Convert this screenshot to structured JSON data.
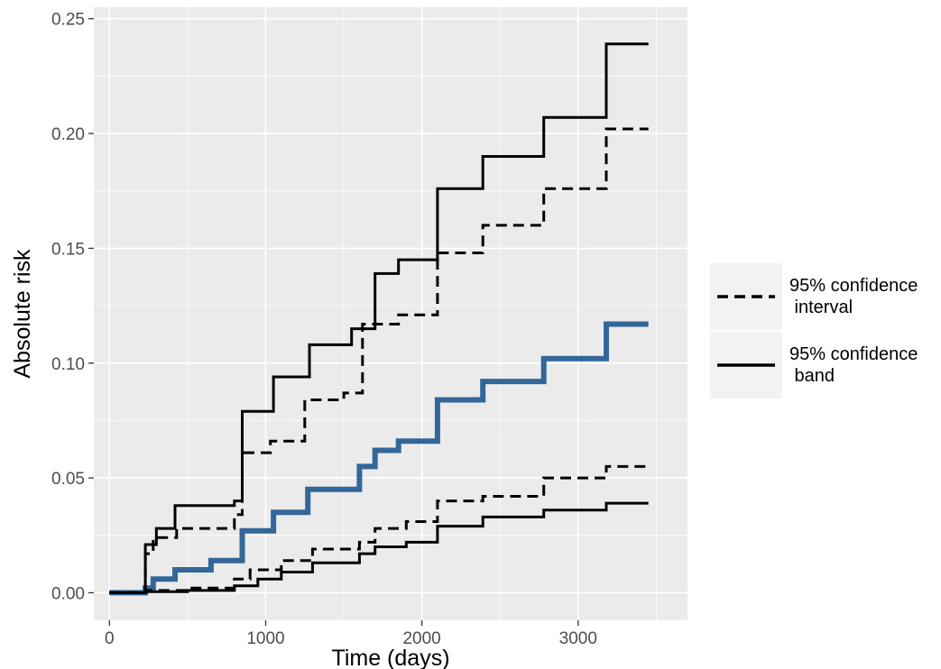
{
  "chart_data": {
    "type": "line",
    "title": "",
    "xlabel": "Time (days)",
    "ylabel": "Absolute risk",
    "xlim": [
      -100,
      3700
    ],
    "ylim": [
      -0.012,
      0.255
    ],
    "x_ticks": [
      0,
      1000,
      2000,
      3000
    ],
    "x_tick_labels": [
      "0",
      "1000",
      "2000",
      "3000"
    ],
    "y_ticks": [
      0,
      0.05,
      0.1,
      0.15,
      0.2,
      0.25
    ],
    "y_tick_labels": [
      "0.00",
      "0.05",
      "0.10",
      "0.15",
      "0.20",
      "0.25"
    ],
    "grid": true,
    "panel_background": "#ebebeb",
    "legend_position": "right",
    "legend": [
      {
        "label_lines": [
          "95% confidence",
          " interval"
        ],
        "linetype": "dashed"
      },
      {
        "label_lines": [
          "95% confidence",
          " band"
        ],
        "linetype": "solid"
      }
    ],
    "series": [
      {
        "key": "estimate",
        "linetype": "solid",
        "color": "#336699",
        "width": 6,
        "x": [
          0,
          230,
          280,
          420,
          650,
          850,
          1050,
          1270,
          1600,
          1700,
          1850,
          2100,
          2390,
          2780,
          3180,
          3450
        ],
        "y": [
          0,
          0.002,
          0.006,
          0.01,
          0.014,
          0.027,
          0.035,
          0.045,
          0.055,
          0.062,
          0.066,
          0.084,
          0.092,
          0.102,
          0.117,
          0.117
        ]
      },
      {
        "key": "ci_upper",
        "linetype": "dashed",
        "color": "#000000",
        "width": 3,
        "x": [
          0,
          230,
          280,
          430,
          800,
          850,
          1030,
          1250,
          1500,
          1620,
          1850,
          2100,
          2390,
          2780,
          3180,
          3450
        ],
        "y": [
          0,
          0.017,
          0.024,
          0.028,
          0.034,
          0.061,
          0.066,
          0.084,
          0.087,
          0.117,
          0.121,
          0.148,
          0.16,
          0.176,
          0.202,
          0.202
        ]
      },
      {
        "key": "cb_upper",
        "linetype": "solid",
        "color": "#000000",
        "width": 3,
        "x": [
          0,
          230,
          300,
          420,
          800,
          850,
          1050,
          1280,
          1550,
          1700,
          1850,
          2100,
          2390,
          2780,
          3180,
          3450
        ],
        "y": [
          0,
          0.021,
          0.028,
          0.038,
          0.04,
          0.079,
          0.094,
          0.108,
          0.115,
          0.139,
          0.145,
          0.176,
          0.19,
          0.207,
          0.239,
          0.239
        ]
      },
      {
        "key": "ci_lower",
        "linetype": "dashed",
        "color": "#000000",
        "width": 3,
        "x": [
          0,
          230,
          500,
          800,
          900,
          1100,
          1300,
          1600,
          1700,
          1900,
          2100,
          2390,
          2780,
          3180,
          3450
        ],
        "y": [
          0,
          0.001,
          0.002,
          0.006,
          0.01,
          0.014,
          0.019,
          0.022,
          0.028,
          0.031,
          0.04,
          0.042,
          0.05,
          0.055,
          0.055
        ]
      },
      {
        "key": "cb_lower",
        "linetype": "solid",
        "color": "#000000",
        "width": 3,
        "x": [
          0,
          230,
          500,
          800,
          950,
          1100,
          1300,
          1600,
          1700,
          1900,
          2100,
          2390,
          2780,
          3180,
          3450
        ],
        "y": [
          0,
          0.0005,
          0.001,
          0.003,
          0.006,
          0.009,
          0.013,
          0.017,
          0.02,
          0.022,
          0.029,
          0.033,
          0.036,
          0.039,
          0.039
        ]
      }
    ]
  }
}
